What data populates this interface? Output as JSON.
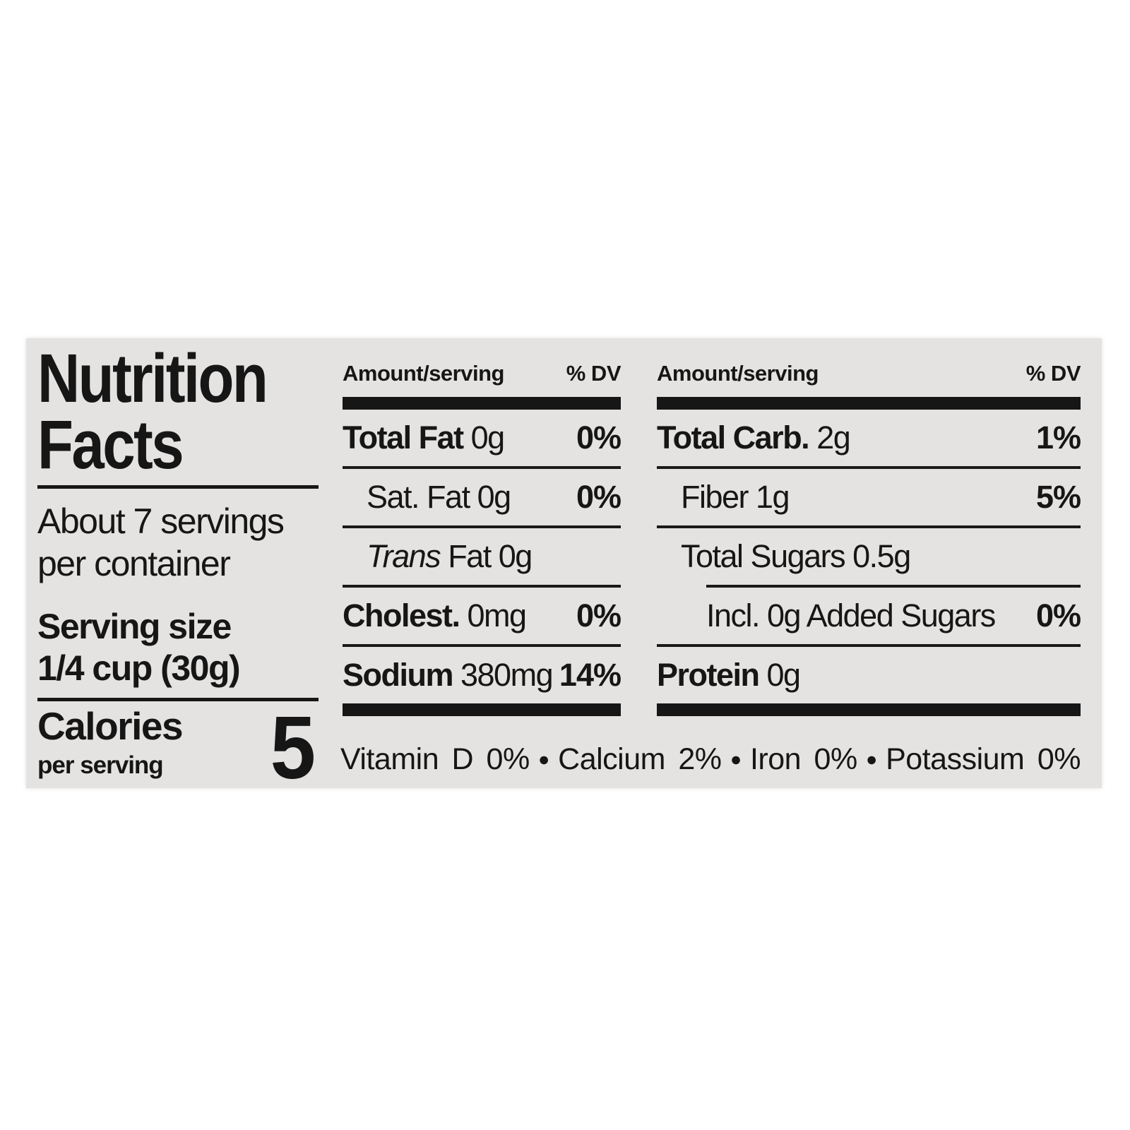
{
  "page": {
    "background": "#ffffff",
    "panel_background": "#e4e3e1",
    "ink": "#161616"
  },
  "label": {
    "title": {
      "line1": "Nutrition",
      "line2": "Facts"
    },
    "servings_per_container": {
      "line1": "About 7 servings",
      "line2": "per container"
    },
    "serving_size": {
      "label": "Serving size",
      "value": "1/4 cup (30g)"
    },
    "calories": {
      "label": "Calories",
      "sublabel": "per serving",
      "value": "5"
    },
    "columns": [
      {
        "header": {
          "amount": "Amount/serving",
          "dv": "% DV"
        },
        "rows": [
          {
            "bold": "Total Fat",
            "italic": "",
            "rest": " 0g",
            "dv": "0%"
          },
          {
            "bold": "",
            "italic": "",
            "rest": "Sat. Fat 0g",
            "dv": "0%"
          },
          {
            "bold": "",
            "italic": "Trans",
            "rest": " Fat 0g",
            "dv": ""
          },
          {
            "bold": "Cholest.",
            "italic": "",
            "rest": " 0mg",
            "dv": "0%"
          },
          {
            "bold": "Sodium",
            "italic": "",
            "rest": " 380mg",
            "dv": "14%"
          }
        ]
      },
      {
        "header": {
          "amount": "Amount/serving",
          "dv": "% DV"
        },
        "rows": [
          {
            "bold": "Total Carb.",
            "italic": "",
            "rest": " 2g",
            "dv": "1%"
          },
          {
            "bold": "",
            "italic": "",
            "rest": "Fiber 1g",
            "dv": "5%"
          },
          {
            "bold": "",
            "italic": "",
            "rest": "Total Sugars 0.5g",
            "dv": ""
          },
          {
            "bold": "",
            "italic": "",
            "rest": "Incl. 0g Added Sugars",
            "dv": "0%"
          },
          {
            "bold": "Protein",
            "italic": "",
            "rest": " 0g",
            "dv": ""
          }
        ]
      }
    ],
    "micronutrients": {
      "bullet": "●",
      "items": [
        {
          "text": "Vitamin D 0%"
        },
        {
          "text": "Calcium 2%"
        },
        {
          "text": "Iron 0%"
        },
        {
          "text": "Potassium 0%"
        }
      ]
    }
  }
}
